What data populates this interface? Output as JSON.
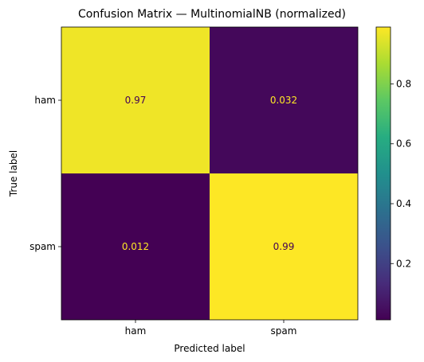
{
  "chart_data": {
    "type": "heatmap",
    "title": "Confusion Matrix — MultinomialNB (normalized)",
    "xlabel": "Predicted label",
    "ylabel": "True label",
    "x_categories": [
      "ham",
      "spam"
    ],
    "y_categories": [
      "ham",
      "spam"
    ],
    "values": [
      [
        0.97,
        0.032
      ],
      [
        0.012,
        0.99
      ]
    ],
    "value_labels": [
      [
        "0.97",
        "0.032"
      ],
      [
        "0.012",
        "0.99"
      ]
    ],
    "colormap": "viridis",
    "vmin": 0.012,
    "vmax": 0.99,
    "colorbar_ticks": [
      0.2,
      0.4,
      0.6,
      0.8
    ],
    "colorbar_tick_labels": [
      "0.2",
      "0.4",
      "0.6",
      "0.8"
    ],
    "text_colors": {
      "on_dark": "#fde725",
      "on_light": "#440154"
    }
  }
}
